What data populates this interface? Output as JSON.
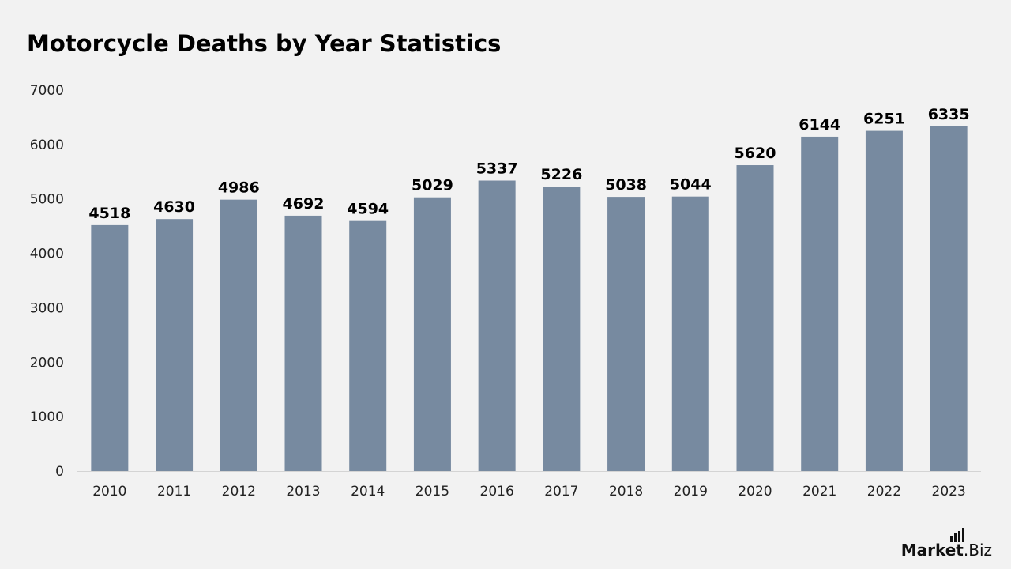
{
  "chart_data": {
    "type": "bar",
    "title": "Motorcycle Deaths by Year Statistics",
    "xlabel": "",
    "ylabel": "",
    "categories": [
      "2010",
      "2011",
      "2012",
      "2013",
      "2014",
      "2015",
      "2016",
      "2017",
      "2018",
      "2019",
      "2020",
      "2021",
      "2022",
      "2023"
    ],
    "values": [
      4518,
      4630,
      4986,
      4692,
      4594,
      5029,
      5337,
      5226,
      5038,
      5044,
      5620,
      6144,
      6251,
      6335
    ],
    "ylim": [
      0,
      7000
    ],
    "yticks": [
      0,
      1000,
      2000,
      3000,
      4000,
      5000,
      6000,
      7000
    ],
    "grid": false,
    "data_labels": true,
    "bar_color": "#778aa0"
  },
  "branding": {
    "logo_part1": "Market",
    "logo_part2": ".Biz"
  }
}
